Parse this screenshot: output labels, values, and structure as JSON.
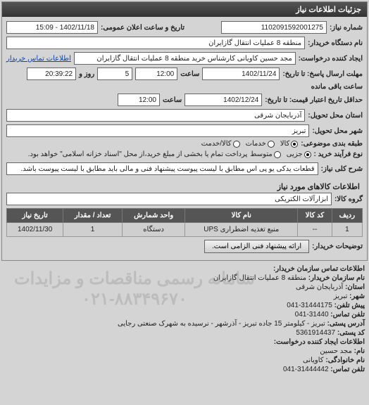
{
  "header": {
    "title": "جزئیات اطلاعات نیاز"
  },
  "fields": {
    "need_no_label": "شماره نیاز:",
    "need_no": "1102091592001275",
    "pubdate_label": "تاریخ و ساعت اعلان عمومی:",
    "pubdate": "1402/11/18 - 15:09",
    "buyer_label": "نام دستگاه خریدار:",
    "buyer": "منطقه 8 عملیات انتقال گازایران",
    "creator_label": "ایجاد کننده درخواست:",
    "creator": "مجد حسین کاویانی کارشناس خرید منطقه 8 عملیات انتقال گازایران",
    "buyer_contact_link": "اطلاعات تماس خریدار",
    "deadline_label": "مهلت ارسال پاسخ: تا تاریخ:",
    "deadline_date": "1402/11/24",
    "time_label": "ساعت",
    "deadline_time": "12:00",
    "days_label": "روز و",
    "days": "5",
    "remain_label": "ساعت باقی مانده",
    "remain": "20:39:22",
    "hold_label": "حداقل تاریخ اعتبار قیمت: تا تاریخ:",
    "hold_date": "1402/12/24",
    "hold_time": "12:00",
    "province_label": "استان محل تحویل:",
    "province": "آذربایجان شرقی",
    "city_label": "شهر محل تحویل:",
    "city": "تبریز",
    "subject_group_label": "طبقه بندی موضوعی:",
    "subject_group": {
      "kala": "کالا",
      "khadamat": "خدمات",
      "both": "کالا/خدمت"
    },
    "buy_type_label": "نوع فرآیند خرید :",
    "buy_type": {
      "jozi": "جزیی",
      "motavaset": "متوسط"
    },
    "buy_type_note": "پرداخت تمام یا بخشی از مبلغ خرید،از محل \"اسناد خزانه اسلامی\" خواهد بود.",
    "need_desc_label": "شرح کلی نیاز:",
    "need_desc": "قطعات یدکی یو پی اس مطابق با لیست پیوست پیشنهاد فنی و مالی باید مطابق با لیست پیوست باشد.",
    "goods_section": "اطلاعات کالاهای مورد نیاز",
    "goods_group_label": "گروه کالا:",
    "goods_group": "ابزارآلات الکتریکی"
  },
  "table": {
    "headers": [
      "ردیف",
      "کد کالا",
      "نام کالا",
      "واحد شمارش",
      "تعداد / مقدار",
      "تاریخ نیاز"
    ],
    "rows": [
      [
        "1",
        "--",
        "منبع تغذیه اضطراری UPS",
        "دستگاه",
        "1",
        "1402/11/30"
      ]
    ]
  },
  "note_row": {
    "label": "توضیحات خریدار:",
    "btn": "ارائه پیشنهاد فنی الزامی است."
  },
  "contact": {
    "title": "اطلاعات تماس سازمان خریدار:",
    "org_label": "نام سازمان خریدار:",
    "org": "منطقه 8 عملیات انتقال گازایران",
    "prov_label": "استان:",
    "prov": "آذربایجان شرقی",
    "city_label": "شهر:",
    "city": "تبریز",
    "phone_label": "پیش تلفن:",
    "phone": "31444175-041",
    "fax_label": "تلفن تماس:",
    "fax": "31440-041",
    "addr_label": "آدرس پستی:",
    "addr": "تبریز - کیلومتر 15 جاده تبریز - آذرشهر - نرسیده به شهرک صنعتی رجایی",
    "zip_label": "کد پستی:",
    "zip": "5361914437",
    "creator_title": "اطلاعات ایجاد کننده درخواست:",
    "name_label": "نام:",
    "name": "مجد حسین",
    "lname_label": "نام خانوادگی:",
    "lname": "کاویانی",
    "tel_label": "تلفن تماس:",
    "tel": "31444442-041",
    "watermark": "سامانه رسمی مناقصات و مزایدات\n۰۲۱-۸۸۳۴۹۶۷۰"
  }
}
